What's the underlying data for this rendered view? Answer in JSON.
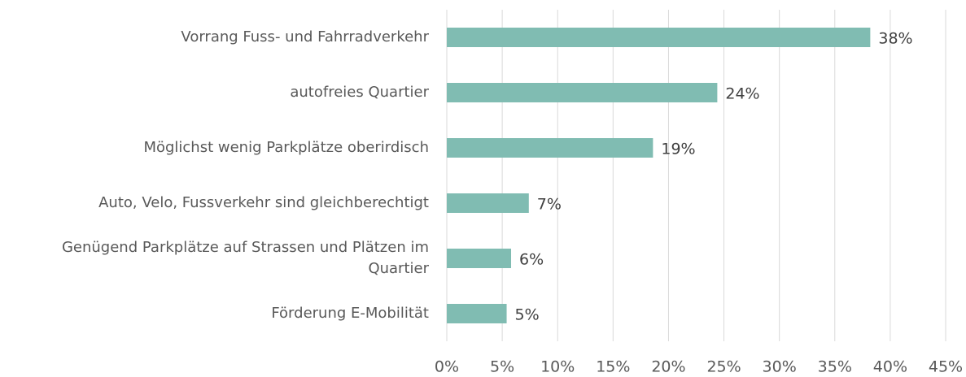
{
  "chart_data": {
    "type": "barh",
    "categories": [
      "Vorrang Fuss- und Fahrradverkehr",
      "autofreies Quartier",
      "Möglichst wenig Parkplätze oberirdisch",
      "Auto, Velo, Fussverkehr sind gleichberechtigt",
      "Genügend Parkplätze auf Strassen und Plätzen im Quartier",
      "Förderung E-Mobilität"
    ],
    "values": [
      38.2,
      24.4,
      18.6,
      7.4,
      5.8,
      5.4
    ],
    "value_labels": [
      "38%",
      "24%",
      "19%",
      "7%",
      "6%",
      "5%"
    ],
    "color": "#80bcb2",
    "xlim": [
      0,
      45
    ],
    "xticks": [
      {
        "value": 0,
        "label": "0%"
      },
      {
        "value": 5,
        "label": "5%"
      },
      {
        "value": 10,
        "label": "10%"
      },
      {
        "value": 15,
        "label": "15%"
      },
      {
        "value": 20,
        "label": "20%"
      },
      {
        "value": 25,
        "label": "25%"
      },
      {
        "value": 30,
        "label": "30%"
      },
      {
        "value": 35,
        "label": "35%"
      },
      {
        "value": 40,
        "label": "40%"
      },
      {
        "value": 45,
        "label": "45%"
      }
    ],
    "grid": true
  }
}
